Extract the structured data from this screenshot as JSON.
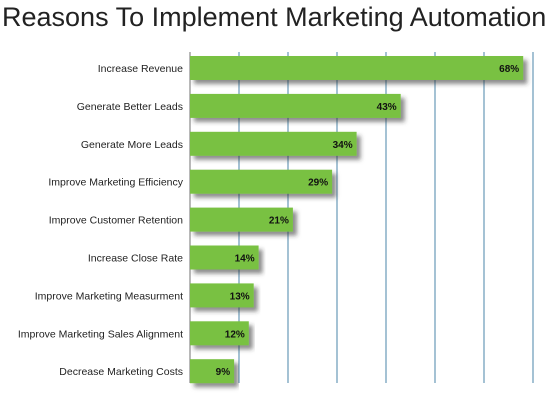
{
  "chart_data": {
    "type": "bar",
    "orientation": "horizontal",
    "title": "Reasons To Implement Marketing Automation",
    "categories": [
      "Increase Revenue",
      "Generate Better Leads",
      "Generate More Leads",
      "Improve Marketing Efficiency",
      "Improve Customer Retention",
      "Increase Close Rate",
      "Improve Marketing Measurment",
      "Improve Marketing Sales Alignment",
      "Decrease Marketing Costs"
    ],
    "values": [
      68,
      43,
      34,
      29,
      21,
      14,
      13,
      12,
      9
    ],
    "value_labels": [
      "68%",
      "43%",
      "34%",
      "29%",
      "21%",
      "14%",
      "13%",
      "12%",
      "9%"
    ],
    "unit": "%",
    "xlim": [
      0,
      70
    ],
    "gridlines_at": [
      10,
      20,
      30,
      40,
      50,
      60,
      70
    ],
    "grid": true,
    "legend": "none",
    "colors": {
      "bar": "#79c142",
      "bar_shadow": "#555555",
      "gridline": "#5b8fb0",
      "axis": "#8a8a8a"
    }
  }
}
